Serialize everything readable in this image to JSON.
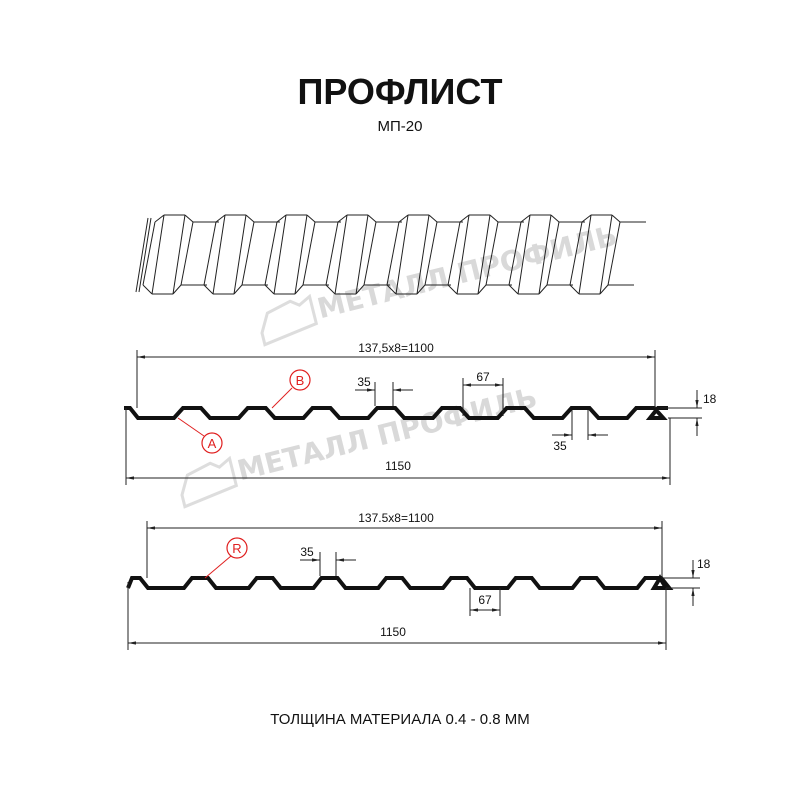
{
  "title": "ПРОФЛИСТ",
  "subtitle": "МП-20",
  "watermark": "МЕТАЛЛ ПРОФИЛЬ",
  "footer": "ТОЛЩИНА МАТЕРИАЛА 0.4 - 0.8 ММ",
  "profile_a": {
    "pitch_label": "137,5x8=1100",
    "width_label": "1150",
    "height_label": "18",
    "top_width_label": "35",
    "ridge_width_label": "67",
    "bottom_width_label": "35",
    "callout_a": "A",
    "callout_b": "B"
  },
  "profile_b": {
    "pitch_label": "137.5x8=1100",
    "width_label": "1150",
    "height_label": "18",
    "top_width_label": "35",
    "bottom_width_label": "67",
    "callout_r": "R"
  },
  "colors": {
    "callout": "#e02020",
    "line": "#111111",
    "watermark": "#d9d9d9"
  }
}
